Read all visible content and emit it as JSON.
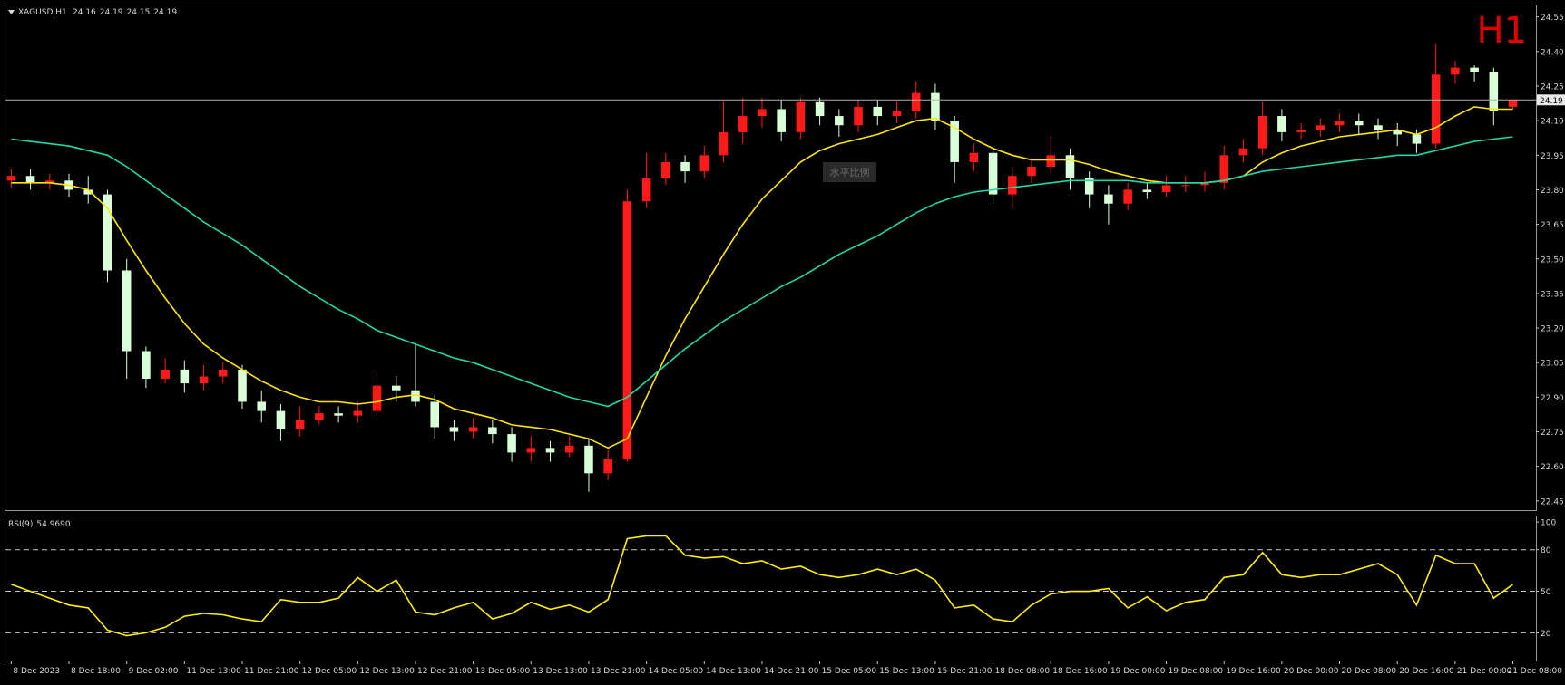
{
  "chart_data": [
    {
      "type": "candlestick",
      "symbol": "XAGUSD,H1",
      "period": "H1",
      "watermark": "水平比例",
      "bull_color": "#ff1a1a",
      "bear_color": "#d9ffd9",
      "open": [
        23.84,
        23.86,
        23.83,
        23.84,
        23.8,
        23.78,
        23.45,
        23.1,
        22.98,
        23.02,
        22.96,
        22.99,
        23.02,
        22.88,
        22.84,
        22.76,
        22.8,
        22.83,
        22.82,
        22.84,
        22.95,
        22.93,
        22.88,
        22.77,
        22.75,
        22.77,
        22.74,
        22.66,
        22.68,
        22.66,
        22.69,
        22.57,
        22.63,
        23.75,
        23.85,
        23.92,
        23.88,
        23.95,
        24.05,
        24.12,
        24.15,
        24.05,
        24.18,
        24.12,
        24.08,
        24.16,
        24.12,
        24.14,
        24.22,
        24.1,
        23.92,
        23.96,
        23.78,
        23.86,
        23.9,
        23.95,
        23.85,
        23.78,
        23.74,
        23.8,
        23.79,
        23.82,
        23.82,
        23.83,
        23.95,
        23.98,
        24.12,
        24.05,
        24.06,
        24.08,
        24.1,
        24.08,
        24.06,
        24.04,
        24.0,
        24.3,
        24.33,
        24.31,
        24.16
      ],
      "high": [
        23.89,
        23.89,
        23.87,
        23.87,
        23.86,
        23.8,
        23.5,
        23.12,
        23.07,
        23.06,
        23.04,
        23.05,
        23.04,
        22.93,
        22.87,
        22.86,
        22.86,
        22.86,
        22.88,
        23.01,
        22.99,
        23.13,
        22.91,
        22.8,
        22.81,
        22.8,
        22.77,
        22.73,
        22.71,
        22.73,
        22.72,
        22.67,
        23.8,
        23.96,
        23.96,
        23.95,
        23.99,
        24.18,
        24.2,
        24.2,
        24.19,
        24.2,
        24.2,
        24.15,
        24.19,
        24.19,
        24.18,
        24.27,
        24.26,
        24.12,
        24.0,
        23.99,
        23.9,
        23.93,
        24.03,
        23.98,
        23.88,
        23.82,
        23.83,
        23.83,
        23.86,
        23.86,
        23.88,
        23.99,
        24.02,
        24.18,
        24.15,
        24.09,
        24.11,
        24.13,
        24.13,
        24.11,
        24.09,
        24.06,
        24.43,
        24.36,
        24.34,
        24.33,
        24.19
      ],
      "low": [
        23.81,
        23.8,
        23.8,
        23.77,
        23.74,
        23.4,
        22.98,
        22.94,
        22.96,
        22.92,
        22.93,
        22.96,
        22.85,
        22.79,
        22.71,
        22.73,
        22.78,
        22.79,
        22.79,
        22.82,
        22.88,
        22.86,
        22.72,
        22.71,
        22.72,
        22.7,
        22.62,
        22.62,
        22.62,
        22.64,
        22.49,
        22.54,
        22.62,
        23.72,
        23.82,
        23.83,
        23.85,
        23.92,
        24.0,
        24.07,
        24.01,
        24.02,
        24.08,
        24.03,
        24.05,
        24.08,
        24.09,
        24.11,
        24.06,
        23.83,
        23.88,
        23.74,
        23.72,
        23.83,
        23.87,
        23.8,
        23.72,
        23.65,
        23.71,
        23.76,
        23.77,
        23.79,
        23.79,
        23.8,
        23.92,
        23.95,
        24.01,
        24.02,
        24.03,
        24.05,
        24.04,
        24.02,
        23.99,
        23.96,
        23.98,
        24.26,
        24.27,
        24.08,
        24.15
      ],
      "close": [
        23.86,
        23.83,
        23.84,
        23.8,
        23.78,
        23.45,
        23.1,
        22.98,
        23.02,
        22.96,
        22.99,
        23.02,
        22.88,
        22.84,
        22.76,
        22.8,
        22.83,
        22.82,
        22.84,
        22.95,
        22.93,
        22.88,
        22.77,
        22.75,
        22.77,
        22.74,
        22.66,
        22.68,
        22.66,
        22.69,
        22.57,
        22.63,
        23.75,
        23.85,
        23.92,
        23.88,
        23.95,
        24.05,
        24.12,
        24.15,
        24.05,
        24.18,
        24.12,
        24.08,
        24.16,
        24.12,
        24.14,
        24.22,
        24.1,
        23.92,
        23.96,
        23.78,
        23.86,
        23.9,
        23.95,
        23.85,
        23.78,
        23.74,
        23.8,
        23.79,
        23.82,
        23.82,
        23.83,
        23.95,
        23.98,
        24.12,
        24.05,
        24.06,
        24.08,
        24.1,
        24.08,
        24.06,
        24.04,
        24.0,
        24.3,
        24.33,
        24.31,
        24.14,
        24.19
      ],
      "series": [
        {
          "color": "#ffe600",
          "values": [
            23.83,
            23.83,
            23.83,
            23.82,
            23.8,
            23.72,
            23.58,
            23.45,
            23.33,
            23.22,
            23.13,
            23.07,
            23.02,
            22.97,
            22.93,
            22.9,
            22.88,
            22.88,
            22.87,
            22.88,
            22.9,
            22.91,
            22.89,
            22.85,
            22.83,
            22.81,
            22.78,
            22.77,
            22.76,
            22.74,
            22.72,
            22.68,
            22.72,
            22.9,
            23.08,
            23.24,
            23.38,
            23.52,
            23.65,
            23.76,
            23.84,
            23.92,
            23.97,
            24.0,
            24.02,
            24.04,
            24.07,
            24.1,
            24.11,
            24.07,
            24.02,
            23.98,
            23.95,
            23.93,
            23.93,
            23.93,
            23.91,
            23.88,
            23.86,
            23.84,
            23.83,
            23.83,
            23.83,
            23.84,
            23.86,
            23.92,
            23.96,
            23.99,
            24.01,
            24.03,
            24.04,
            24.05,
            24.06,
            24.04,
            24.07,
            24.12,
            24.16,
            24.15,
            24.15
          ]
        },
        {
          "color": "#20d8a8",
          "values": [
            24.02,
            24.01,
            24.0,
            23.99,
            23.97,
            23.95,
            23.9,
            23.84,
            23.78,
            23.72,
            23.66,
            23.61,
            23.56,
            23.5,
            23.44,
            23.38,
            23.33,
            23.28,
            23.24,
            23.19,
            23.16,
            23.13,
            23.1,
            23.07,
            23.05,
            23.02,
            22.99,
            22.96,
            22.93,
            22.9,
            22.88,
            22.86,
            22.9,
            22.97,
            23.04,
            23.11,
            23.17,
            23.23,
            23.28,
            23.33,
            23.38,
            23.42,
            23.47,
            23.52,
            23.56,
            23.6,
            23.65,
            23.7,
            23.74,
            23.77,
            23.79,
            23.8,
            23.81,
            23.82,
            23.83,
            23.84,
            23.84,
            23.84,
            23.84,
            23.83,
            23.83,
            23.83,
            23.83,
            23.84,
            23.86,
            23.88,
            23.89,
            23.9,
            23.91,
            23.92,
            23.93,
            23.94,
            23.95,
            23.95,
            23.97,
            23.99,
            24.01,
            24.02,
            24.03
          ]
        }
      ],
      "current_price": 24.19,
      "xlim": [
        -0.3,
        79.2
      ],
      "ylim": [
        22.41,
        24.6
      ],
      "yticks": [
        22.45,
        {
          "value": 22.6,
          "label": "22.60"
        },
        22.75,
        {
          "value": 22.9,
          "label": "22.90"
        },
        23.05,
        {
          "value": 23.2,
          "label": "23.20"
        },
        23.35,
        {
          "value": 23.5,
          "label": "23.50"
        },
        23.65,
        {
          "value": 23.8,
          "label": "23.80"
        },
        23.95,
        {
          "value": 24.1,
          "label": "24.10"
        },
        24.25,
        {
          "value": 24.4,
          "label": "24.40"
        },
        24.55
      ]
    },
    {
      "type": "line",
      "title": "RSI(9)",
      "series": [
        {
          "color": "#ffee00",
          "last_label": "54.9690",
          "values": [
            55,
            50,
            45,
            40,
            38,
            22,
            18,
            20,
            24,
            32,
            34,
            33,
            30,
            28,
            44,
            42,
            42,
            45,
            60,
            50,
            58,
            35,
            33,
            38,
            42,
            30,
            34,
            42,
            37,
            40,
            35,
            44,
            88,
            90,
            90,
            76,
            74,
            75,
            70,
            72,
            66,
            68,
            62,
            60,
            62,
            66,
            62,
            66,
            58,
            38,
            40,
            30,
            28,
            40,
            48,
            50,
            50,
            52,
            38,
            46,
            36,
            42,
            44,
            60,
            62,
            78,
            62,
            60,
            62,
            62,
            66,
            70,
            62,
            40,
            76,
            70,
            70,
            45,
            54.969
          ]
        }
      ],
      "levels": [
        20,
        50,
        80
      ],
      "xlim": [
        -0.3,
        79.2
      ],
      "ylim": [
        0,
        104
      ],
      "yticks": [
        20,
        50,
        80,
        100
      ],
      "xticks": [
        {
          "value": 0,
          "label": "8 Dec 2023"
        },
        {
          "value": 3,
          "label": "8 Dec 18:00"
        },
        {
          "value": 6,
          "label": "9 Dec 02:00"
        },
        {
          "value": 9,
          "label": "11 Dec 13:00"
        },
        {
          "value": 12,
          "label": "11 Dec 21:00"
        },
        {
          "value": 15,
          "label": "12 Dec 05:00"
        },
        {
          "value": 18,
          "label": "12 Dec 13:00"
        },
        {
          "value": 21,
          "label": "12 Dec 21:00"
        },
        {
          "value": 24,
          "label": "13 Dec 05:00"
        },
        {
          "value": 27,
          "label": "13 Dec 13:00"
        },
        {
          "value": 30,
          "label": "13 Dec 21:00"
        },
        {
          "value": 33,
          "label": "14 Dec 05:00"
        },
        {
          "value": 36,
          "label": "14 Dec 13:00"
        },
        {
          "value": 39,
          "label": "14 Dec 21:00"
        },
        {
          "value": 42,
          "label": "15 Dec 05:00"
        },
        {
          "value": 45,
          "label": "15 Dec 13:00"
        },
        {
          "value": 48,
          "label": "15 Dec 21:00"
        },
        {
          "value": 51,
          "label": "18 Dec 08:00"
        },
        {
          "value": 54,
          "label": "18 Dec 16:00"
        },
        {
          "value": 57,
          "label": "19 Dec 00:00"
        },
        {
          "value": 60,
          "label": "19 Dec 08:00"
        },
        {
          "value": 63,
          "label": "19 Dec 16:00"
        },
        {
          "value": 66,
          "label": "20 Dec 00:00"
        },
        {
          "value": 69,
          "label": "20 Dec 08:00"
        },
        {
          "value": 72,
          "label": "20 Dec 16:00"
        },
        {
          "value": 75,
          "label": "21 Dec 00:00"
        },
        {
          "value": 78,
          "label": "21 Dec 08:00"
        }
      ]
    }
  ]
}
